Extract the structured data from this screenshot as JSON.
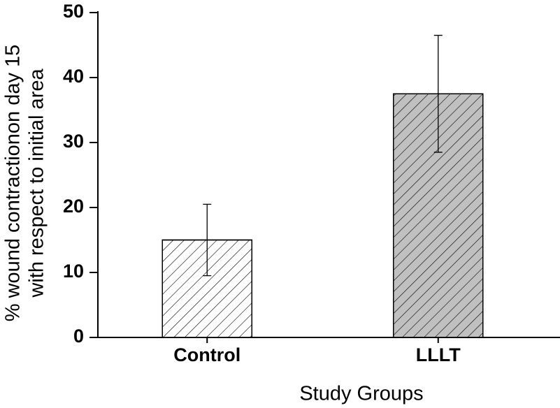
{
  "chart_data": {
    "type": "bar",
    "ylabel": [
      "% wound contractionon day 15",
      "with respect to initial area"
    ],
    "xlabel": "Study Groups",
    "categories": [
      "Control",
      "LLLT"
    ],
    "values": [
      15,
      37.5
    ],
    "errors": [
      5.5,
      9
    ],
    "colors": [
      "#ffffff",
      "#c0c0c0"
    ],
    "hatch": true,
    "ylim": [
      0,
      50
    ],
    "yticks": [
      0,
      10,
      20,
      30,
      40,
      50
    ]
  }
}
